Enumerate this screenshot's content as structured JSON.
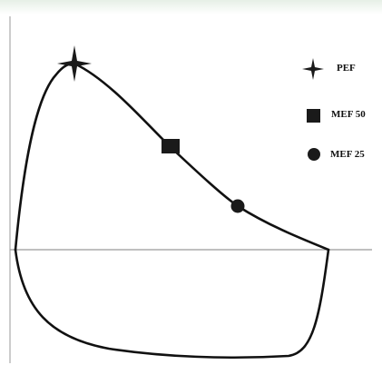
{
  "diagram": {
    "legend": [
      {
        "symbol": "star",
        "label": "PEF"
      },
      {
        "symbol": "square",
        "label": "MEF 50"
      },
      {
        "symbol": "circle",
        "label": "MEF 25"
      }
    ],
    "colors": {
      "curve": "#111111",
      "axis": "#9a9a9a",
      "marker": "#1a1a1a",
      "watermark": "#e6efe6"
    }
  }
}
